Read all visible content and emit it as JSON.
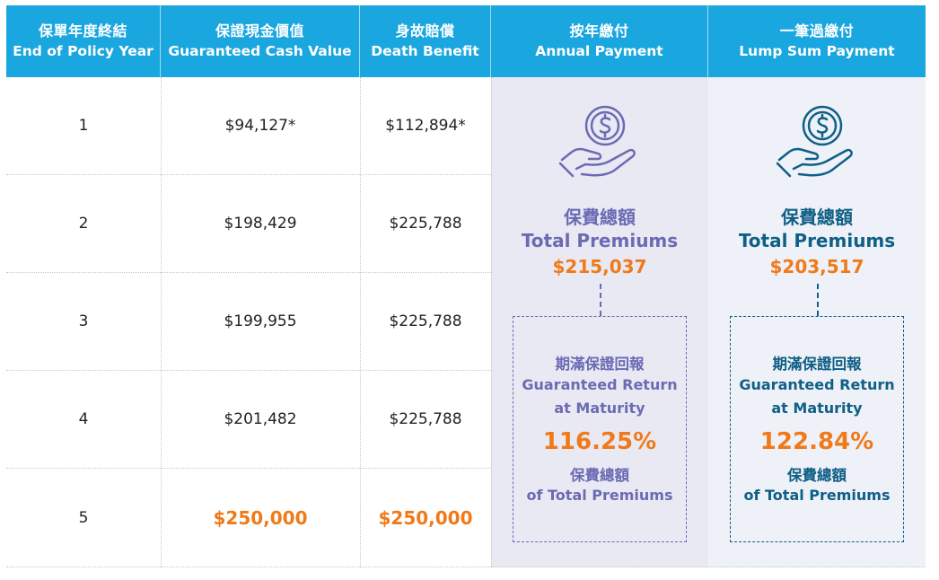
{
  "header": {
    "columns": [
      {
        "zh": "保單年度終結",
        "en": "End of Policy Year"
      },
      {
        "zh": "保證現金價值",
        "en": "Guaranteed Cash Value"
      },
      {
        "zh": "身故賠償",
        "en": "Death Benefit"
      },
      {
        "zh": "按年繳付",
        "en": "Annual Payment"
      },
      {
        "zh": "一筆過繳付",
        "en": "Lump Sum Payment"
      }
    ]
  },
  "rows": [
    {
      "year": "1",
      "cash_value": "$94,127*",
      "death_benefit": "$112,894*"
    },
    {
      "year": "2",
      "cash_value": "$198,429",
      "death_benefit": "$225,788"
    },
    {
      "year": "3",
      "cash_value": "$199,955",
      "death_benefit": "$225,788"
    },
    {
      "year": "4",
      "cash_value": "$201,482",
      "death_benefit": "$225,788"
    },
    {
      "year": "5",
      "cash_value": "$250,000",
      "death_benefit": "$250,000"
    }
  ],
  "annual": {
    "icon": "money-hand-icon",
    "total_zh": "保費總額",
    "total_en": "Total Premiums",
    "total_amount": "$215,037",
    "return_zh": "期滿保證回報",
    "return_en1": "Guaranteed Return",
    "return_en2": "at Maturity",
    "return_pct": "116.25%",
    "of_zh": "保費總額",
    "of_en": "of Total Premiums",
    "accent": "#6b6bb4"
  },
  "lump": {
    "icon": "money-hand-icon",
    "total_zh": "保費總額",
    "total_en": "Total Premiums",
    "total_amount": "$203,517",
    "return_zh": "期滿保證回報",
    "return_en1": "Guaranteed Return",
    "return_en2": "at Maturity",
    "return_pct": "122.84%",
    "of_zh": "保費總額",
    "of_en": "of Total Premiums",
    "accent": "#0f5f86"
  },
  "colors": {
    "header_bg": "#1aa6df",
    "highlight": "#f07a1a"
  }
}
